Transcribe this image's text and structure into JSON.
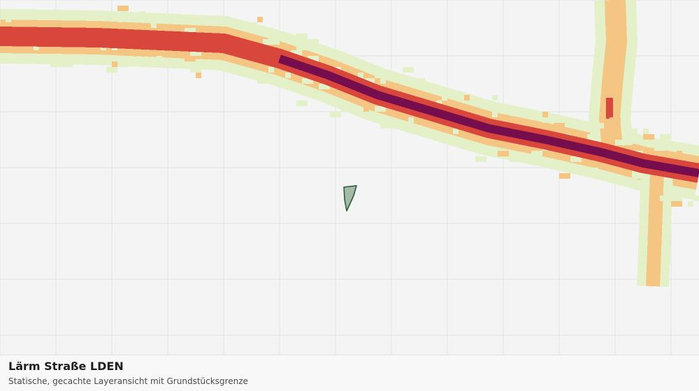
{
  "layer": {
    "title": "Lärm Straße LDEN",
    "subtitle": "Statische, gecachte Layeransicht mit Grundstücksgrenze"
  },
  "colors": {
    "background": "#f3f4f3",
    "grid": "#e0e3e0",
    "noise_class_1": "#e4f0c8",
    "noise_class_2": "#f5c583",
    "noise_class_3": "#d9473c",
    "noise_class_4": "#760e4e",
    "parcel_fill": "#9bb59e",
    "parcel_stroke": "#2d5a3a"
  },
  "noise_classes": [
    "class_1",
    "class_2",
    "class_3",
    "class_4"
  ]
}
